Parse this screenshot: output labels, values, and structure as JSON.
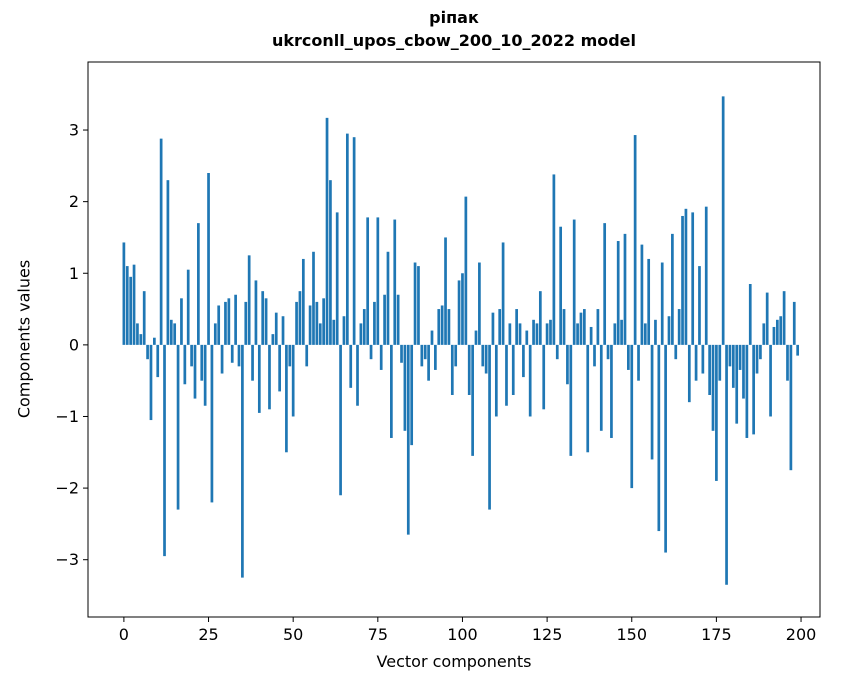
{
  "chart_data": {
    "type": "bar",
    "title_line1": "ріпак",
    "title_line2": "ukrconll_upos_cbow_200_10_2022 model",
    "xlabel": "Vector components",
    "ylabel": "Components values",
    "bar_color": "#1f77b4",
    "axes_color": "#000000",
    "background_color": "#ffffff",
    "grid": false,
    "legend": false,
    "x_start": 0,
    "xlim": [
      -10.6,
      205.6
    ],
    "ylim": [
      -3.8,
      3.95
    ],
    "xticks": [
      0,
      25,
      50,
      75,
      100,
      125,
      150,
      175,
      200
    ],
    "yticks": [
      -3,
      -2,
      -1,
      0,
      1,
      2,
      3
    ],
    "values": [
      1.43,
      1.1,
      0.95,
      1.12,
      0.3,
      0.15,
      0.75,
      -0.2,
      -1.05,
      0.1,
      -0.45,
      2.88,
      -2.95,
      2.3,
      0.35,
      0.3,
      -2.3,
      0.65,
      -0.55,
      1.05,
      -0.3,
      -0.75,
      1.7,
      -0.5,
      -0.85,
      2.4,
      -2.2,
      0.3,
      0.55,
      -0.4,
      0.6,
      0.65,
      -0.25,
      0.7,
      -0.3,
      -3.25,
      0.6,
      1.25,
      -0.5,
      0.9,
      -0.95,
      0.75,
      0.65,
      -0.9,
      0.15,
      0.45,
      -0.65,
      0.4,
      -1.5,
      -0.3,
      -1.0,
      0.6,
      0.75,
      1.2,
      -0.3,
      0.55,
      1.3,
      0.6,
      0.3,
      0.65,
      3.17,
      2.3,
      0.35,
      1.85,
      -2.1,
      0.4,
      2.95,
      -0.6,
      2.9,
      -0.85,
      0.3,
      0.5,
      1.78,
      -0.2,
      0.6,
      1.78,
      -0.35,
      0.7,
      1.3,
      -1.3,
      1.75,
      0.7,
      -0.25,
      -1.2,
      -2.65,
      -1.4,
      1.15,
      1.1,
      -0.3,
      -0.2,
      -0.5,
      0.2,
      -0.35,
      0.5,
      0.55,
      1.5,
      0.5,
      -0.7,
      -0.3,
      0.9,
      1.0,
      2.07,
      -0.7,
      -1.55,
      0.2,
      1.15,
      -0.3,
      -0.4,
      -2.3,
      0.45,
      -1.0,
      0.5,
      1.43,
      -0.85,
      0.3,
      -0.7,
      0.5,
      0.3,
      -0.45,
      0.2,
      -1.0,
      0.35,
      0.3,
      0.75,
      -0.9,
      0.3,
      0.35,
      2.38,
      -0.2,
      1.65,
      0.5,
      -0.55,
      -1.55,
      1.75,
      0.3,
      0.45,
      0.5,
      -1.5,
      0.25,
      -0.3,
      0.5,
      -1.2,
      1.7,
      -0.2,
      -1.3,
      0.3,
      1.45,
      0.35,
      1.55,
      -0.35,
      -2.0,
      2.93,
      -0.5,
      1.4,
      0.3,
      1.2,
      -1.6,
      0.35,
      -2.6,
      1.15,
      -2.9,
      0.4,
      1.55,
      -0.2,
      0.5,
      1.8,
      1.9,
      -0.8,
      1.85,
      -0.5,
      1.1,
      -0.4,
      1.93,
      -0.7,
      -1.2,
      -1.9,
      -0.5,
      3.47,
      -3.35,
      -0.3,
      -0.6,
      -1.1,
      -0.35,
      -0.75,
      -1.3,
      0.85,
      -1.25,
      -0.4,
      -0.2,
      0.3,
      0.73,
      -1.0,
      0.25,
      0.35,
      0.4,
      0.75,
      -0.5,
      -1.75,
      0.6,
      -0.15
    ]
  }
}
